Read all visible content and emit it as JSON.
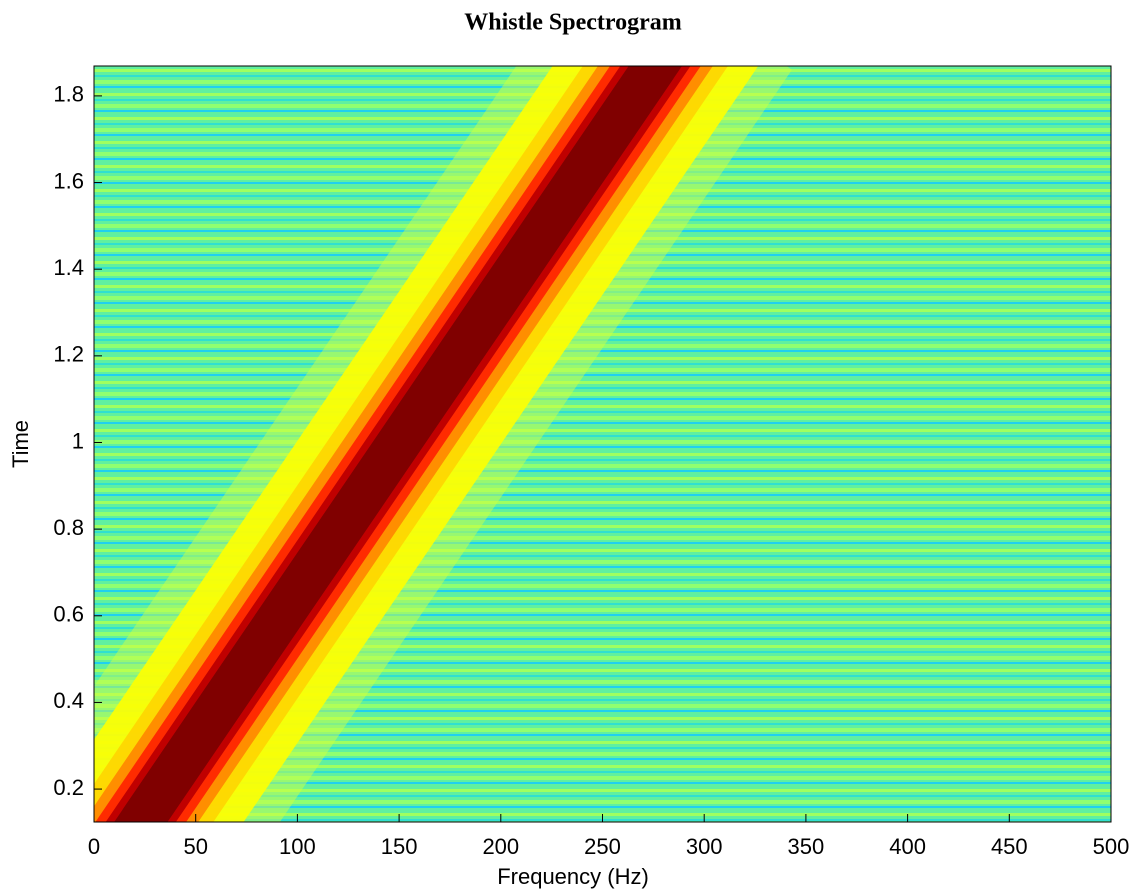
{
  "chart_data": {
    "type": "spectrogram",
    "title": "Whistle Spectrogram",
    "x_label": "Frequency (Hz)",
    "y_label": "Time",
    "x": [
      23,
      92,
      150,
      208,
      276
    ],
    "y": [
      0.124,
      0.6,
      1.0,
      1.4,
      1.869
    ],
    "color": "#800000",
    "xlim": [
      0,
      500
    ],
    "xticks": [
      0,
      50,
      100,
      150,
      200,
      250,
      300,
      350,
      400,
      450,
      500
    ],
    "ylim": [
      0.124,
      1.869
    ],
    "yticks": [
      0.2,
      0.4,
      0.6,
      0.8,
      1,
      1.2,
      1.4,
      1.6,
      1.8
    ]
  }
}
